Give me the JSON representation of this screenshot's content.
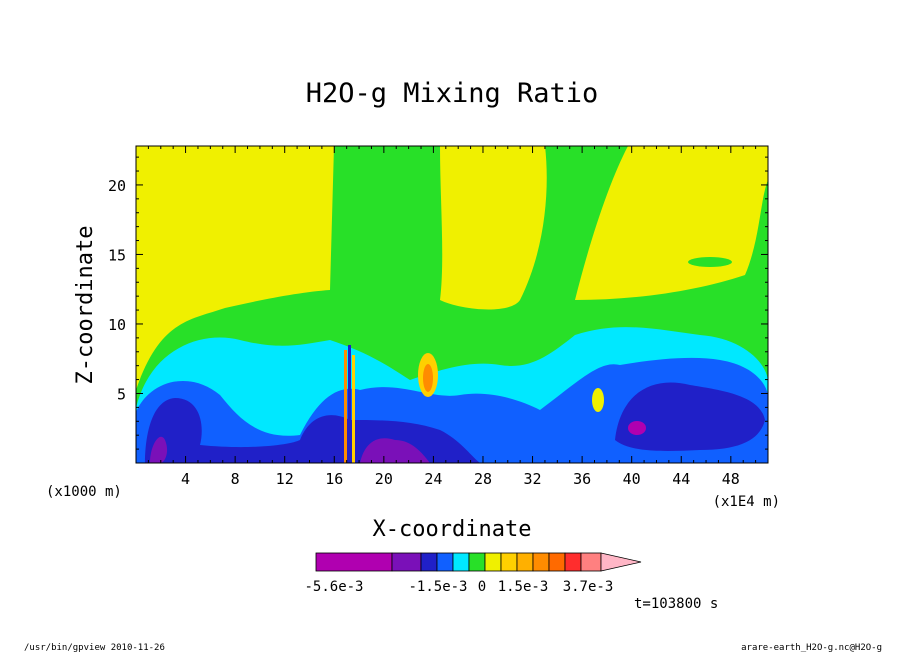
{
  "chart_data": {
    "type": "heatmap",
    "title": "H2O-g Mixing Ratio",
    "xlabel": "X-coordinate",
    "ylabel": "Z-coordinate",
    "x_unit_left": "(x1000 m)",
    "x_unit_right": "(x1E4 m)",
    "x_ticks": [
      "4",
      "8",
      "12",
      "16",
      "20",
      "24",
      "28",
      "32",
      "36",
      "40",
      "44",
      "48"
    ],
    "y_ticks": [
      "5",
      "10",
      "15",
      "20"
    ],
    "xlim": [
      0,
      51
    ],
    "ylim": [
      0,
      22.8
    ],
    "colorbar": {
      "labels": [
        "-5.6e-3",
        "-1.5e-3",
        "0",
        "1.5e-3",
        "3.7e-3"
      ],
      "colors": [
        "#b000b0",
        "#7a10b8",
        "#2020c8",
        "#1060ff",
        "#00e8ff",
        "#28e028",
        "#f0f000",
        "#ffd000",
        "#ffb000",
        "#ff8c00",
        "#ff6a00",
        "#ff2d2d",
        "#ff8080",
        "#ffb6c6"
      ]
    },
    "time_label": "t=103800 s",
    "footer_left": "/usr/bin/gpview  2010-11-26",
    "footer_right": "arare-earth_H2O-g.nc@H2O-g",
    "field": {
      "background": "#f0f000",
      "bands": [
        "#28e028",
        "#00e8ff",
        "#1060ff",
        "#2020c8",
        "#7a10b8",
        "#b000b0",
        "#ffd000",
        "#ff8c00"
      ]
    }
  }
}
